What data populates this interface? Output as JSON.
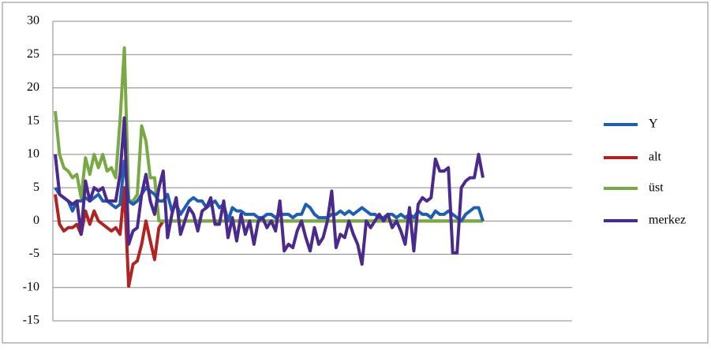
{
  "chart_data": {
    "type": "line",
    "categories": [
      null,
      null,
      null,
      null,
      null,
      null,
      null,
      null,
      null,
      null,
      null,
      null,
      null,
      null,
      null,
      null,
      null,
      null,
      null,
      null,
      null,
      null,
      null,
      null,
      null,
      null,
      null,
      null,
      null,
      null,
      null,
      null,
      null,
      null,
      null,
      null,
      null,
      null,
      null,
      null,
      null,
      null,
      null,
      null,
      null,
      null,
      null,
      null,
      null,
      null,
      null,
      null,
      null,
      null,
      null,
      null,
      null,
      null,
      null,
      null,
      null,
      null,
      null,
      null,
      null,
      null,
      null,
      null,
      null,
      null,
      null,
      null,
      null,
      null,
      null,
      null,
      null,
      null,
      null,
      null,
      null,
      null,
      null,
      null,
      null,
      null,
      null,
      null,
      null,
      null,
      null,
      null,
      null,
      null,
      null,
      null,
      null,
      null,
      null,
      null
    ],
    "ylim": [
      -15,
      30
    ],
    "yticks": [
      -15,
      -10,
      -5,
      0,
      5,
      10,
      15,
      20,
      25,
      30
    ],
    "grid": true,
    "legend": "right",
    "series": [
      {
        "name": "Y",
        "color": "#1f5fb0",
        "values": [
          5,
          4,
          3.5,
          3,
          1.5,
          3,
          3,
          3.5,
          3,
          3.5,
          4,
          3,
          3,
          2.5,
          2,
          2.5,
          9,
          3,
          2.5,
          3,
          4,
          5,
          4.5,
          4,
          3,
          3,
          4,
          1.5,
          2.5,
          1,
          2,
          3,
          3.5,
          3,
          3,
          2,
          2.5,
          3,
          2,
          2.5,
          0,
          2,
          1.5,
          1.5,
          1,
          1,
          1,
          0.5,
          0.5,
          1,
          1,
          0.5,
          1,
          1,
          1,
          0.5,
          1,
          1,
          2.5,
          2,
          1,
          0.5,
          0.5,
          0.5,
          1,
          1,
          1.5,
          1,
          1.5,
          1,
          1.5,
          2,
          1.5,
          1,
          1,
          0.5,
          0.5,
          1,
          1,
          0.5,
          1,
          0.5,
          1,
          0.5,
          1.5,
          1,
          1,
          0.5,
          1.5,
          1,
          1,
          1.5,
          1,
          0.5,
          0,
          1,
          1.5,
          2,
          2,
          0
        ]
      },
      {
        "name": "alt",
        "color": "#b02424",
        "values": [
          4,
          -0.5,
          -1.5,
          -1,
          -1,
          -0.5,
          -2,
          1.5,
          -0.5,
          1.5,
          0,
          -0.5,
          -1,
          -1.5,
          -1,
          -2,
          5,
          -9.8,
          -6.5,
          -6,
          -3.5,
          0,
          -3,
          -5.8,
          -1,
          0,
          0,
          0,
          0,
          0,
          0,
          0,
          0,
          0,
          0,
          0,
          0,
          0,
          0,
          0,
          0,
          0,
          0,
          0,
          0,
          0,
          0,
          0,
          0,
          0,
          0,
          0,
          0,
          0,
          0,
          0,
          0,
          0,
          0,
          0,
          0,
          0,
          0,
          0,
          0,
          0,
          0,
          0,
          0,
          0,
          0,
          0,
          0,
          0,
          0,
          0,
          0,
          0,
          0,
          0,
          0,
          0,
          0,
          0,
          0,
          0,
          0,
          0,
          0,
          0,
          0,
          0,
          0,
          0,
          0,
          0,
          0,
          0,
          0,
          0
        ]
      },
      {
        "name": "üst",
        "color": "#78a944",
        "values": [
          16.5,
          10,
          8,
          7.5,
          6.5,
          7,
          3.5,
          9.5,
          7,
          10,
          8,
          10,
          7.5,
          8,
          6.5,
          15,
          26,
          3,
          3,
          4,
          14.3,
          12,
          6.5,
          6.5,
          0,
          0,
          0,
          0,
          0,
          0,
          0,
          0,
          0,
          0,
          0,
          0,
          0,
          0,
          0,
          0,
          0,
          0,
          0,
          0,
          0,
          0,
          0,
          0,
          0,
          0,
          0,
          0,
          0,
          0,
          0,
          0,
          0,
          0,
          0,
          0,
          0,
          0,
          0,
          0,
          0,
          0,
          0,
          0,
          0,
          0,
          0,
          0,
          0,
          0,
          0,
          0,
          0,
          0,
          0,
          0,
          0,
          0,
          0,
          0,
          0,
          0,
          0,
          0,
          0,
          0,
          0,
          0,
          0,
          0,
          0,
          0,
          0,
          0,
          0,
          0
        ]
      },
      {
        "name": "merkez",
        "color": "#4a2a8c",
        "values": [
          10,
          4,
          3.5,
          3,
          2.5,
          3,
          -2,
          6,
          3,
          5,
          4.5,
          5,
          3,
          3,
          3,
          7,
          15.5,
          -3.5,
          -1.5,
          -1,
          4,
          7,
          3,
          1,
          5,
          7.5,
          -2.5,
          1,
          3.5,
          -2,
          0,
          2,
          1,
          -1.5,
          1.5,
          2,
          3.5,
          -0.5,
          -0.5,
          3,
          -2.5,
          0.5,
          -3,
          1,
          -2,
          0,
          -3.5,
          0,
          0.5,
          -1,
          0,
          -1.5,
          3,
          -4.5,
          -3.5,
          -4,
          -1.5,
          0,
          -2.5,
          -4.5,
          -1,
          -3.5,
          -2.5,
          0,
          4.5,
          -4,
          -2,
          -2.5,
          0,
          -2,
          -3.5,
          -6.5,
          0,
          -1,
          0,
          1,
          0,
          1,
          -1,
          0,
          -1.5,
          -3.5,
          2,
          -4.5,
          2.5,
          3.5,
          3,
          3.5,
          9.3,
          7.5,
          7.5,
          8,
          -4.8,
          -4.8,
          5,
          6,
          6.5,
          6.5,
          10,
          6.5
        ]
      }
    ]
  }
}
